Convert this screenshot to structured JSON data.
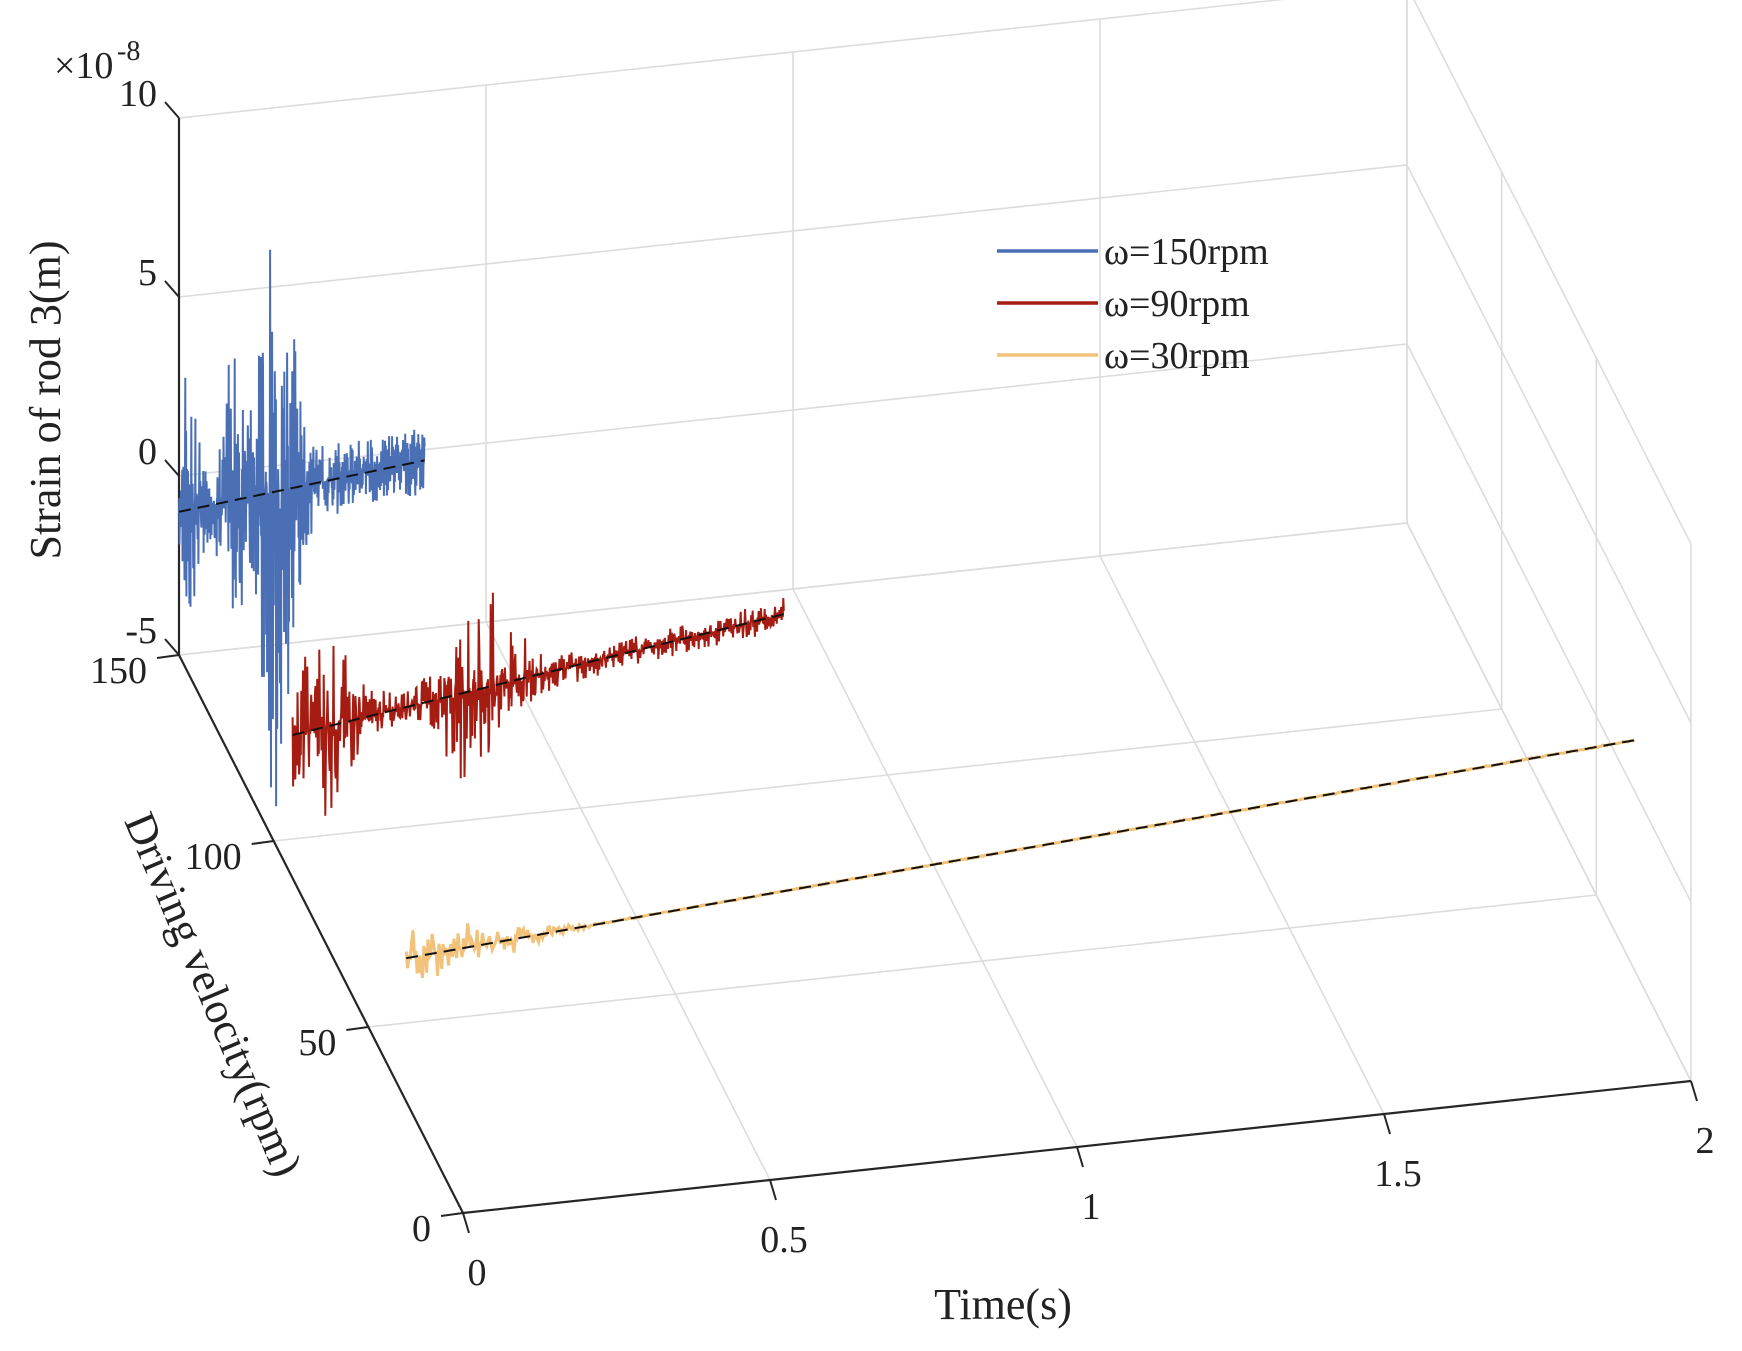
{
  "chart_data": {
    "type": "line",
    "subtype": "3d-waterfall",
    "title": "",
    "xlabel": "Time(s)",
    "ylabel": "Driving velocity(rpm)",
    "zlabel": "Strain of rod 3(m)",
    "z_exponent_label": "×10",
    "z_exponent_power": "-8",
    "xlim": [
      0,
      2
    ],
    "ylim": [
      0,
      150
    ],
    "zlim": [
      -5,
      10
    ],
    "x_ticks": [
      "0",
      "0.5",
      "1",
      "1.5",
      "2"
    ],
    "y_ticks": [
      "0",
      "50",
      "100",
      "150"
    ],
    "z_ticks": [
      "-5",
      "0",
      "5",
      "10"
    ],
    "grid": true,
    "legend_position": "top-right",
    "series": [
      {
        "name": "ω=150rpm",
        "velocity": 150,
        "t_end": 0.4,
        "color": "#4a6fb5",
        "peak_amplitude": 8.5,
        "baseline_end": -0.3
      },
      {
        "name": "ω=90rpm",
        "velocity": 90,
        "t_end": 0.8,
        "color": "#a51c12",
        "peak_amplitude": 2.6,
        "baseline_end": 0.9
      },
      {
        "name": "ω=30rpm",
        "velocity": 30,
        "t_end": 2.0,
        "color": "#f2c27a",
        "peak_amplitude": 0.9,
        "baseline_end": 1.4
      }
    ],
    "reference_line_style": "black dashed"
  }
}
